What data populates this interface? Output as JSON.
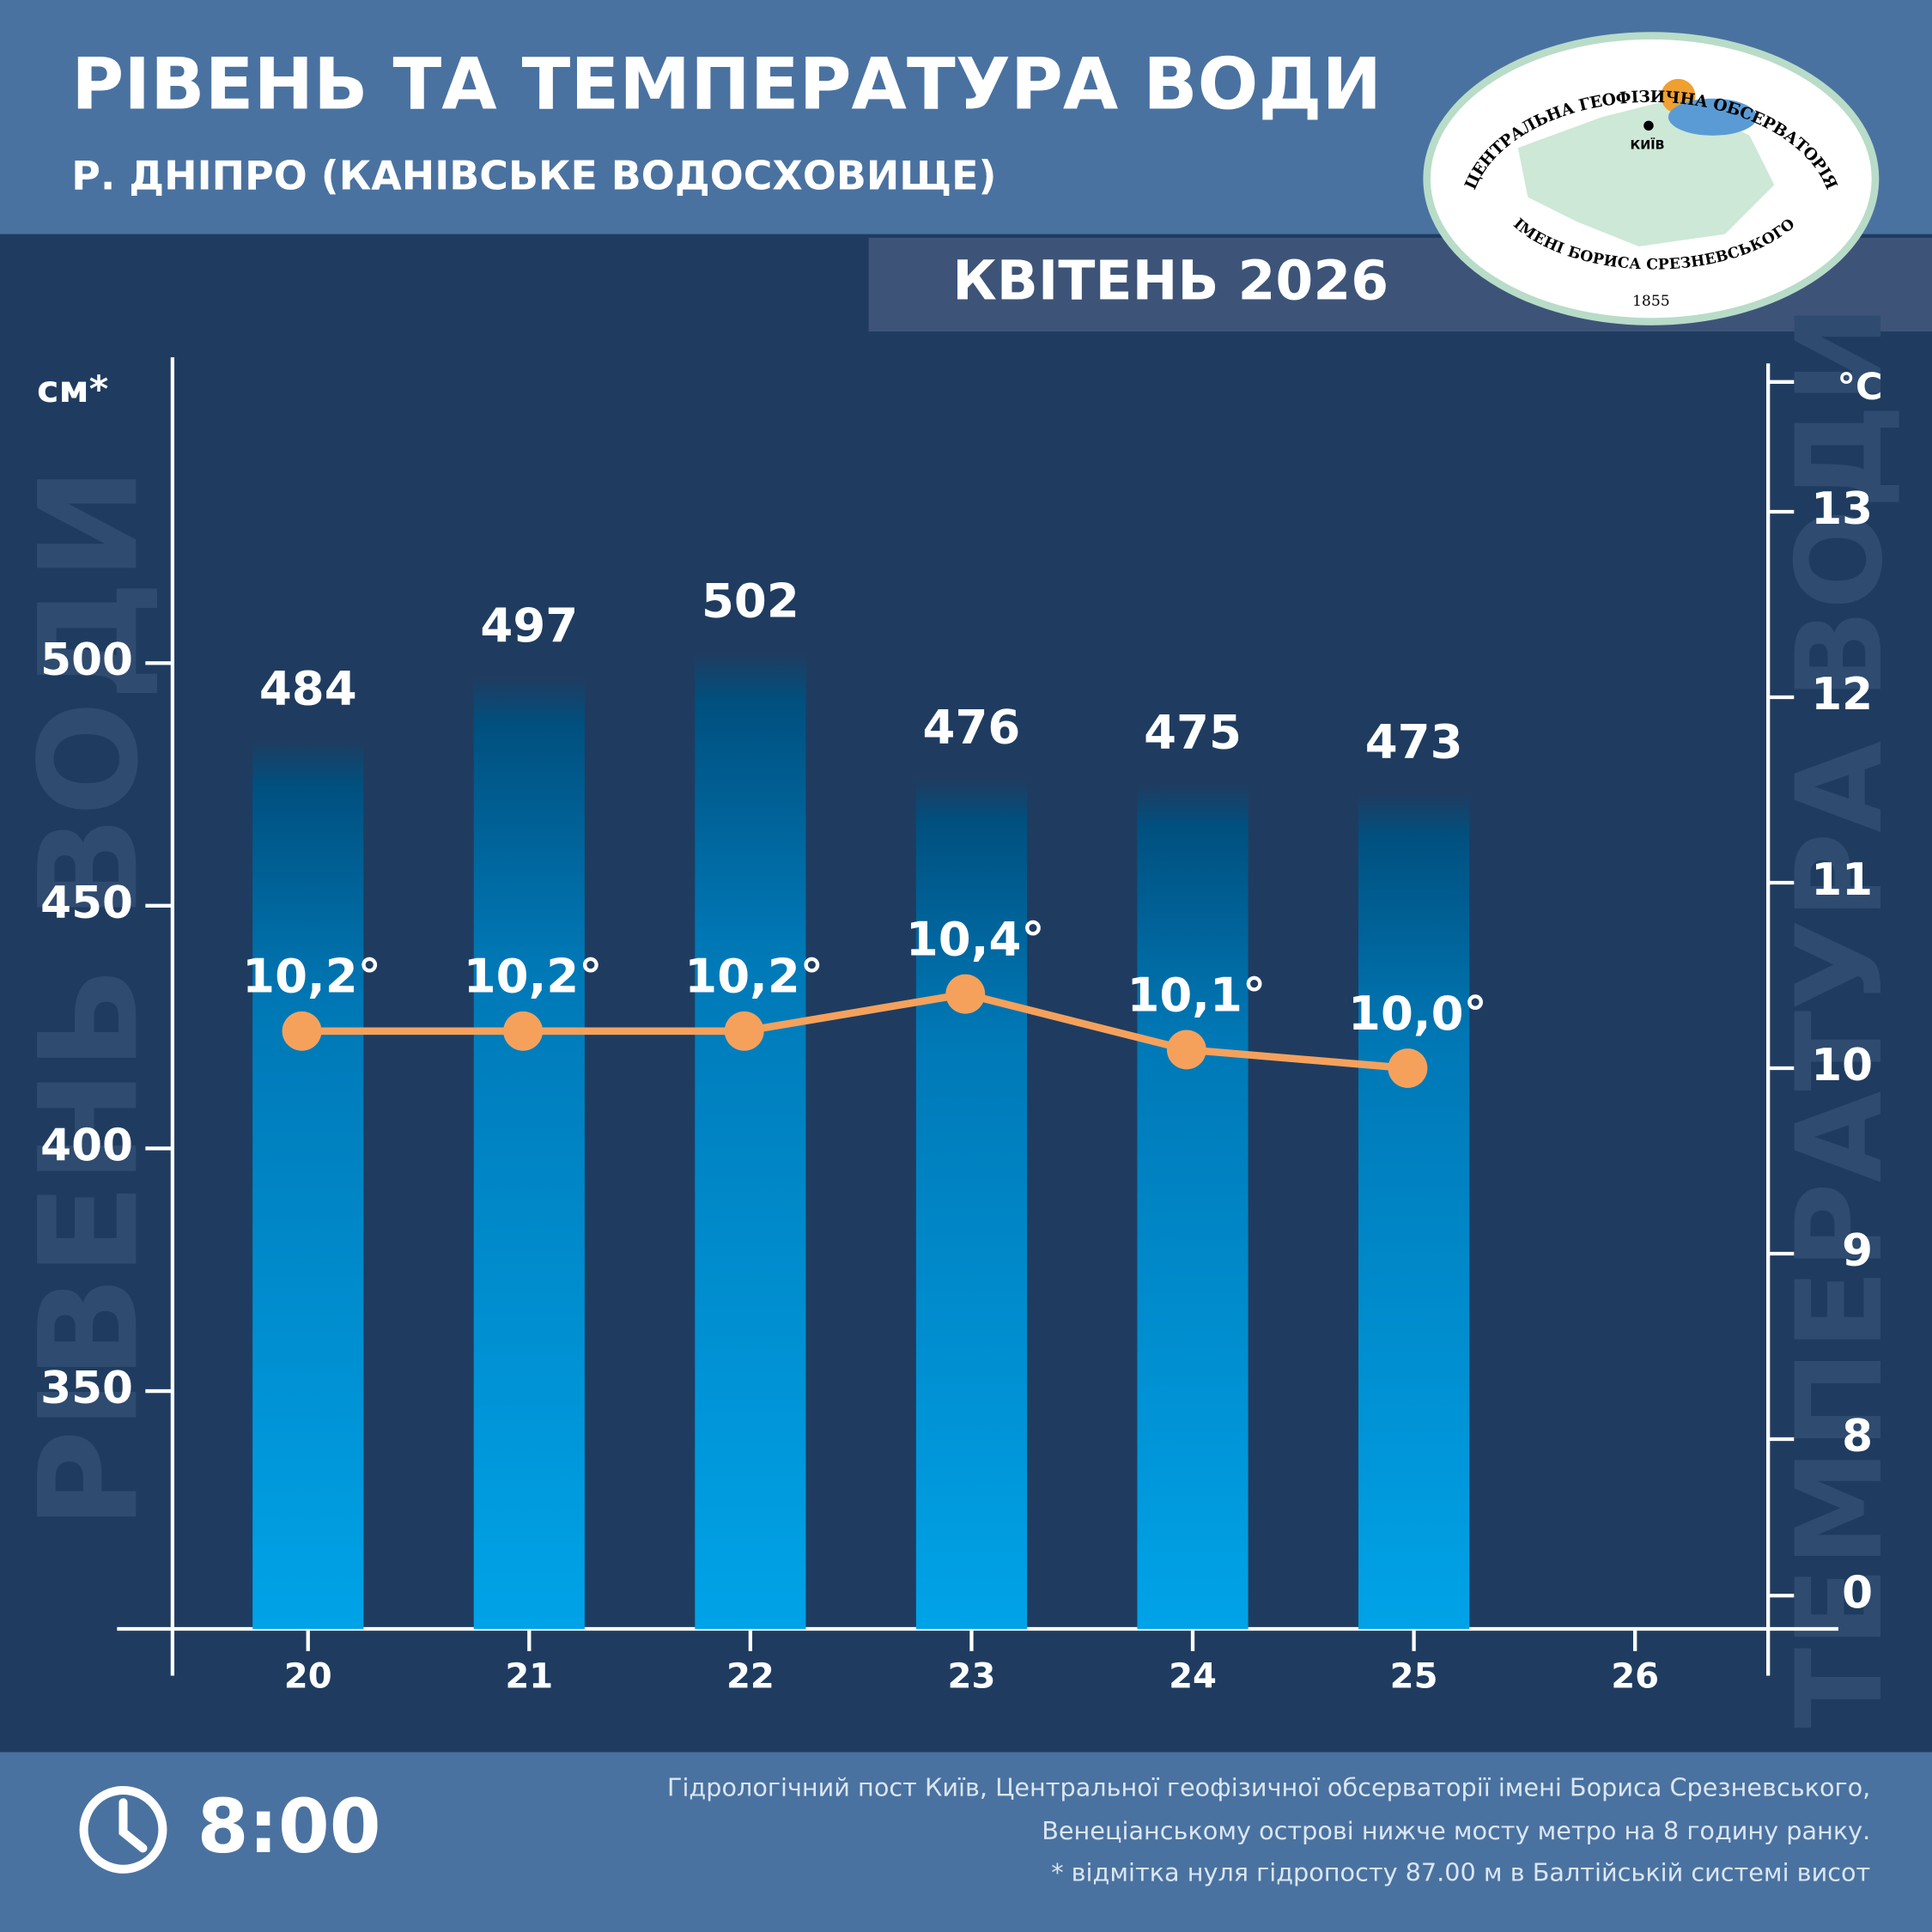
{
  "chart_data": {
    "type": "bar",
    "title": "РІВЕНЬ ТА ТЕМПЕРАТУРА ВОДИ",
    "subtitle": "Р. ДНІПРО (КАНІВСЬКЕ ВОДОСХОВИЩЕ)",
    "period": "КВІТЕНЬ 2026",
    "y_label": "см*",
    "y2_label": "°C",
    "y_watermark": "РІВЕНЬ ВОДИ",
    "y2_watermark": "ТЕМПЕРАТУРА ВОДИ",
    "categories": [
      "20",
      "21",
      "22",
      "23",
      "24",
      "25",
      "26"
    ],
    "series": [
      {
        "name": "Рівень води",
        "type": "bar",
        "values": [
          484,
          497,
          502,
          476,
          475,
          473,
          null
        ]
      },
      {
        "name": "Температура води",
        "type": "line",
        "axis": "y2",
        "color": "#f5a15c",
        "values": [
          10.2,
          10.2,
          10.2,
          10.4,
          10.1,
          10.0,
          null
        ],
        "value_labels": [
          "10,2°",
          "10,2°",
          "10,2°",
          "10,4°",
          "10,1°",
          "10,0°",
          null
        ]
      }
    ],
    "ylim": [
      301,
      563
    ],
    "yticks": [
      350,
      400,
      450,
      500
    ],
    "y2lim": [
      0,
      13.7
    ],
    "y2ticks": [
      0,
      8,
      9,
      10,
      11,
      12,
      13
    ],
    "y2_break": [
      0,
      8
    ],
    "logo": {
      "top": "ЦЕНТРАЛЬНА ГЕОФІЗИЧНА ОБСЕРВАТОРІЯ",
      "city": "КИЇВ",
      "bottom": "ІМЕНІ БОРИСА СРЕЗНЕВСЬКОГО",
      "year": "1855"
    },
    "time": "8:00",
    "notes": [
      "Гідрологічний пост Київ, Центральної геофізичної обсерваторії імені Бориса Срезневського,",
      "Венеціанському острові нижче мосту метро  на 8 годину ранку.",
      "* відмітка нуля гідропосту 87.00 м в Балтійській системі висот"
    ]
  }
}
